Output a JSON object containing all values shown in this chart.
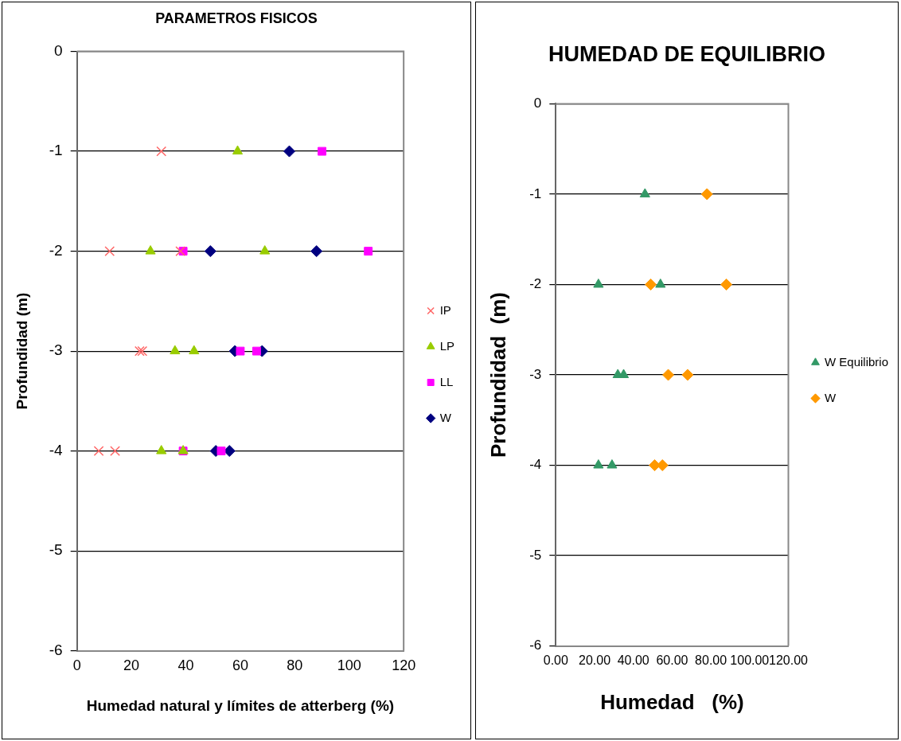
{
  "chart_data": [
    {
      "type": "scatter",
      "title": "PARAMETROS FISICOS",
      "xlabel": "Humedad natural y límites de atterberg (%)",
      "ylabel": "Profundidad (m)",
      "xlim": [
        0,
        120
      ],
      "xticks": [
        0,
        20,
        40,
        60,
        80,
        100,
        120
      ],
      "ylim": [
        -6,
        0
      ],
      "yticks": [
        0,
        -1,
        -2,
        -3,
        -4,
        -5,
        -6
      ],
      "grid": "y",
      "legend": "right",
      "series": [
        {
          "name": "W",
          "color": "#000080",
          "marker": "diamond",
          "x": [
            78,
            49,
            88,
            58,
            68,
            51,
            56
          ],
          "values": [
            -1,
            -2,
            -2,
            -3,
            -3,
            -4,
            -4
          ]
        },
        {
          "name": "LL",
          "color": "#ff00ff",
          "marker": "square",
          "x": [
            90,
            39,
            107,
            60,
            66,
            39,
            53
          ],
          "values": [
            -1,
            -2,
            -2,
            -3,
            -3,
            -4,
            -4
          ]
        },
        {
          "name": "LP",
          "color": "#99cc00",
          "marker": "triangle",
          "x": [
            59,
            27,
            69,
            36,
            43,
            31,
            39
          ],
          "values": [
            -1,
            -2,
            -2,
            -3,
            -3,
            -4,
            -4
          ]
        },
        {
          "name": "IP",
          "color": "#ff6666",
          "marker": "cross",
          "x": [
            31,
            12,
            38,
            24,
            23,
            8,
            14
          ],
          "values": [
            -1,
            -2,
            -2,
            -3,
            -3,
            -4,
            -4
          ]
        }
      ]
    },
    {
      "type": "scatter",
      "title": "HUMEDAD DE EQUILIBRIO",
      "xlabel": "Humedad   (%)",
      "ylabel": "Profundidad  (m)",
      "xlim": [
        0,
        120
      ],
      "xticks": [
        {
          "value": 0,
          "label": "0.00"
        },
        {
          "value": 20,
          "label": "20.00"
        },
        {
          "value": 40,
          "label": "40.00"
        },
        {
          "value": 60,
          "label": "60.00"
        },
        {
          "value": 80,
          "label": "80.00"
        },
        {
          "value": 100,
          "label": "100.00"
        },
        {
          "value": 120,
          "label": "120.00"
        }
      ],
      "ylim": [
        -6,
        0
      ],
      "yticks": [
        0,
        -1,
        -2,
        -3,
        -4,
        -5,
        -6
      ],
      "grid": "y",
      "legend": "right",
      "series": [
        {
          "name": "W",
          "color": "#ff9900",
          "marker": "diamond",
          "x": [
            78,
            49,
            88,
            58,
            68,
            51,
            55
          ],
          "values": [
            -1,
            -2,
            -2,
            -3,
            -3,
            -4,
            -4
          ]
        },
        {
          "name": "W Equilibrio",
          "color": "#339966",
          "marker": "triangle",
          "x": [
            46,
            22,
            54,
            32,
            35,
            22,
            29
          ],
          "values": [
            -1,
            -2,
            -2,
            -3,
            -3,
            -4,
            -4
          ]
        }
      ]
    }
  ]
}
